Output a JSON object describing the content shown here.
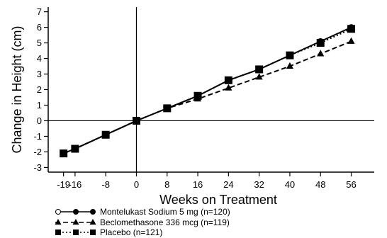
{
  "chart_data": {
    "type": "line",
    "xlabel": "Weeks on Treatment",
    "ylabel": "Change in Height (cm)",
    "xticks": [
      -19,
      -16,
      -8,
      0,
      8,
      16,
      24,
      32,
      40,
      48,
      56
    ],
    "xtick_labels": [
      "-19",
      "-16",
      "-8",
      "0",
      "8",
      "16",
      "24",
      "32",
      "40",
      "48",
      "56"
    ],
    "yticks": [
      -3,
      -2,
      -1,
      0,
      1,
      2,
      3,
      4,
      5,
      6,
      7
    ],
    "ytick_labels": [
      "-3",
      "-2",
      "-1",
      "0",
      "1",
      "2",
      "3",
      "4",
      "5",
      "6",
      "7"
    ],
    "xlim": [
      -23,
      62
    ],
    "ylim": [
      -3.3,
      7.3
    ],
    "grid": false,
    "legend_position": "bottom-left",
    "series": [
      {
        "name": "Montelukast Sodium 5 mg (n=120)",
        "marker": "circle",
        "line_style": "solid",
        "x": [
          -19,
          -16,
          -8,
          0,
          8,
          16,
          24,
          32,
          40,
          48,
          56
        ],
        "y": [
          -2.1,
          -1.8,
          -0.9,
          0.0,
          0.8,
          1.6,
          2.6,
          3.3,
          4.2,
          5.1,
          6.0
        ]
      },
      {
        "name": "Beclomethasone 336 mcg (n=119)",
        "marker": "triangle",
        "line_style": "dashed",
        "x": [
          -19,
          -16,
          -8,
          0,
          8,
          16,
          24,
          32,
          40,
          48,
          56
        ],
        "y": [
          -2.1,
          -1.8,
          -0.9,
          0.0,
          0.8,
          1.4,
          2.1,
          2.8,
          3.5,
          4.3,
          5.1
        ]
      },
      {
        "name": "Placebo (n=121)",
        "marker": "square",
        "line_style": "dotted",
        "x": [
          -19,
          -16,
          -8,
          0,
          8,
          16,
          24,
          32,
          40,
          48,
          56
        ],
        "y": [
          -2.1,
          -1.8,
          -0.9,
          0.0,
          0.8,
          1.6,
          2.6,
          3.3,
          4.2,
          5.0,
          5.9
        ]
      }
    ]
  }
}
